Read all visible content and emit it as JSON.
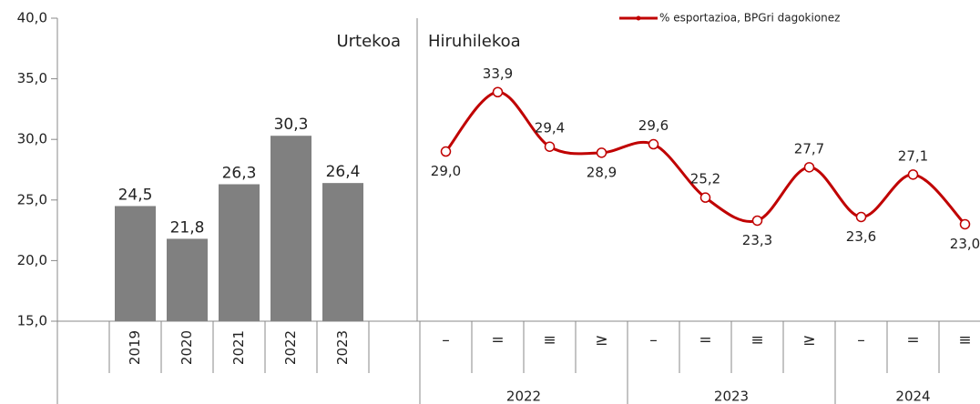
{
  "chart_data": [
    {
      "type": "bar",
      "annotation": "Urtekoa",
      "categories": [
        "2019",
        "2020",
        "2021",
        "2022",
        "2023"
      ],
      "values": [
        24.5,
        21.8,
        26.3,
        30.3,
        26.4
      ],
      "value_labels": [
        "24,5",
        "21,8",
        "26,3",
        "30,3",
        "26,4"
      ],
      "color": "#808080",
      "ylim": [
        15,
        40
      ],
      "yticks": [
        {
          "value": 15,
          "label": "15,0"
        },
        {
          "value": 20,
          "label": "20,0"
        },
        {
          "value": 25,
          "label": "25,0"
        },
        {
          "value": 30,
          "label": "30,0"
        },
        {
          "value": 35,
          "label": "35,0"
        },
        {
          "value": 40,
          "label": "40,0"
        }
      ]
    },
    {
      "type": "line",
      "annotation": "Hiruhilekoa",
      "categories": [
        "–",
        "=",
        "≡",
        "≥",
        "–",
        "=",
        "≡",
        "≥",
        "–",
        "=",
        "≡"
      ],
      "groups": [
        {
          "label": "2022",
          "count": 4
        },
        {
          "label": "2023",
          "count": 4
        },
        {
          "label": "2024",
          "count": 3
        }
      ],
      "series": [
        {
          "name": "% esportazioa, BPGri dagokionez",
          "color": "#c00000",
          "values": [
            29.0,
            33.9,
            29.4,
            28.9,
            29.6,
            25.2,
            23.3,
            27.7,
            23.6,
            27.1,
            23.0
          ],
          "value_labels": [
            "29,0",
            "33,9",
            "29,4",
            "28,9",
            "29,6",
            "25,2",
            "23,3",
            "27,7",
            "23,6",
            "27,1",
            "23,0"
          ]
        }
      ]
    }
  ]
}
